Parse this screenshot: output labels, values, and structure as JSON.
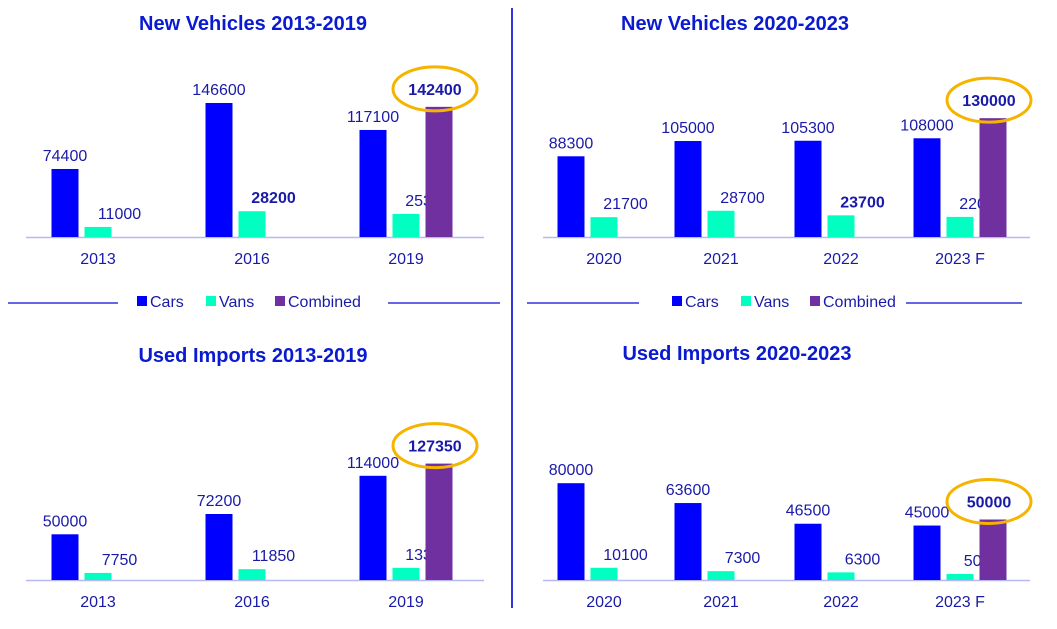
{
  "colors": {
    "cars": "#0000ff",
    "vans": "#00ffc0",
    "combined": "#7030a0",
    "text": "#1a1aa8",
    "title": "#0a1ad0",
    "highlight": "#f5b400",
    "axis": "#b8b8f0",
    "legend_line": "#3333dd"
  },
  "legend": [
    {
      "name": "Cars",
      "color": "#0000ff"
    },
    {
      "name": "Vans",
      "color": "#00ffc0"
    },
    {
      "name": "Combined",
      "color": "#7030a0"
    }
  ],
  "chart_data": [
    {
      "id": "new-2013-2019",
      "type": "bar",
      "title": "New Vehicles 2013-2019",
      "categories": [
        "2013",
        "2016",
        "2019"
      ],
      "series": [
        {
          "name": "Cars",
          "values": [
            74400,
            146600,
            117100
          ],
          "bold": [
            false,
            false,
            false
          ]
        },
        {
          "name": "Vans",
          "values": [
            11000,
            28200,
            25300
          ],
          "bold": [
            false,
            true,
            false
          ]
        },
        {
          "name": "Combined",
          "values": [
            null,
            null,
            142400
          ],
          "bold": [
            false,
            false,
            true
          ]
        }
      ],
      "highlighted": {
        "series": "Combined",
        "category": "2019",
        "value": 142400
      },
      "legend_position": "bottom",
      "grid": false,
      "ylim": [
        0,
        150000
      ]
    },
    {
      "id": "new-2020-2023",
      "type": "bar",
      "title": "New Vehicles 2020-2023",
      "categories": [
        "2020",
        "2021",
        "2022",
        "2023 F"
      ],
      "series": [
        {
          "name": "Cars",
          "values": [
            88300,
            105000,
            105300,
            108000
          ],
          "bold": [
            false,
            false,
            false,
            false
          ]
        },
        {
          "name": "Vans",
          "values": [
            21700,
            28700,
            23700,
            22000
          ],
          "bold": [
            false,
            false,
            true,
            false
          ]
        },
        {
          "name": "Combined",
          "values": [
            null,
            null,
            null,
            130000
          ],
          "bold": [
            false,
            false,
            false,
            true
          ]
        }
      ],
      "highlighted": {
        "series": "Combined",
        "category": "2023 F",
        "value": 130000
      },
      "legend_position": "bottom",
      "grid": false,
      "ylim": [
        0,
        150000
      ]
    },
    {
      "id": "used-2013-2019",
      "type": "bar",
      "title": "Used Imports 2013-2019",
      "categories": [
        "2013",
        "2016",
        "2019"
      ],
      "series": [
        {
          "name": "Cars",
          "values": [
            50000,
            72200,
            114000
          ],
          "bold": [
            false,
            false,
            false
          ]
        },
        {
          "name": "Vans",
          "values": [
            7750,
            11850,
            13350
          ],
          "bold": [
            false,
            false,
            false
          ]
        },
        {
          "name": "Combined",
          "values": [
            null,
            null,
            127350
          ],
          "bold": [
            false,
            false,
            true
          ]
        }
      ],
      "highlighted": {
        "series": "Combined",
        "category": "2019",
        "value": 127350
      },
      "legend_position": "none",
      "grid": false,
      "ylim": [
        0,
        150000
      ]
    },
    {
      "id": "used-2020-2023",
      "type": "bar",
      "title": "Used Imports 2020-2023",
      "categories": [
        "2020",
        "2021",
        "2022",
        "2023 F"
      ],
      "series": [
        {
          "name": "Cars",
          "values": [
            80000,
            63600,
            46500,
            45000
          ],
          "bold": [
            false,
            false,
            false,
            false
          ]
        },
        {
          "name": "Vans",
          "values": [
            10100,
            7300,
            6300,
            5000
          ],
          "bold": [
            false,
            false,
            false,
            false
          ]
        },
        {
          "name": "Combined",
          "values": [
            null,
            null,
            null,
            50000
          ],
          "bold": [
            false,
            false,
            false,
            true
          ]
        }
      ],
      "highlighted": {
        "series": "Combined",
        "category": "2023 F",
        "value": 50000
      },
      "legend_position": "none",
      "grid": false,
      "ylim": [
        0,
        120000
      ]
    }
  ]
}
